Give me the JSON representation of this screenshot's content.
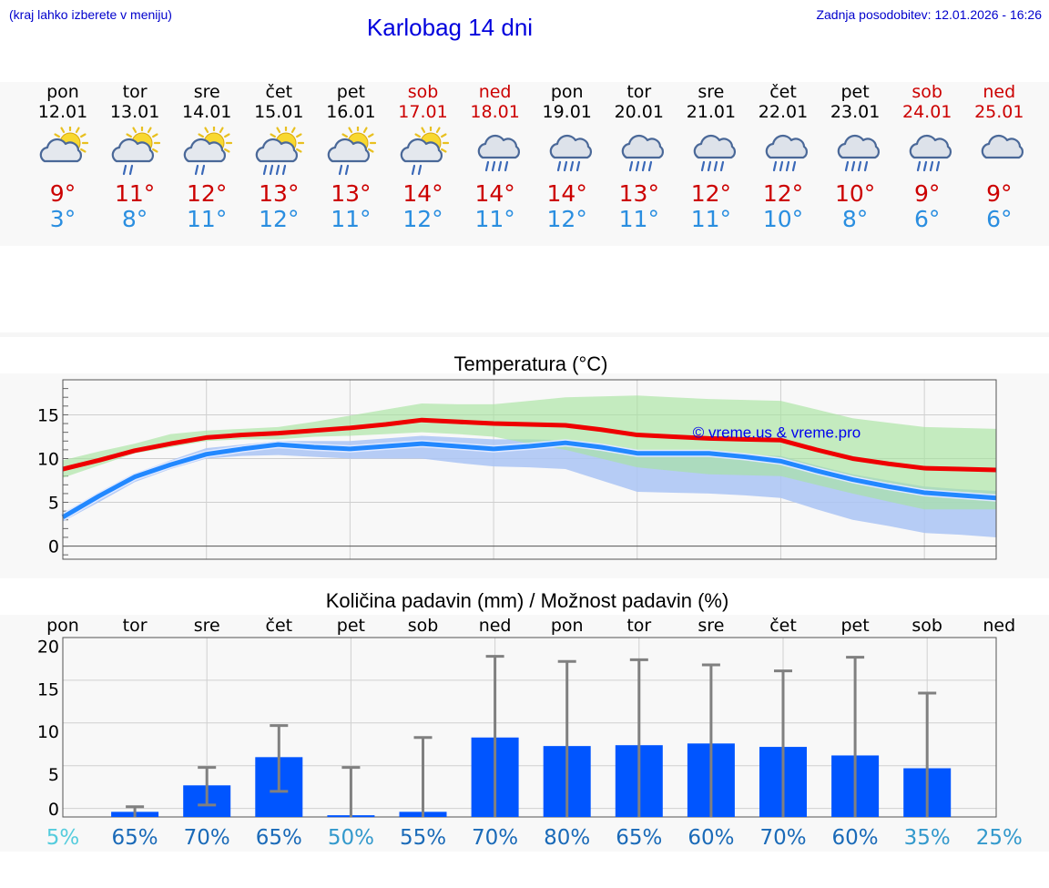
{
  "header": {
    "left_note": "(kraj lahko izberete v meniju)",
    "title": "Karlobag 14 dni",
    "updated": "Zadnja posodobitev: 12.01.2026 - 16:26"
  },
  "days": [
    {
      "name": "pon",
      "date": "12.01",
      "tmax": "9°",
      "tmin": "3°",
      "icon": "sun-cloud-icon",
      "weekend": false
    },
    {
      "name": "tor",
      "date": "13.01",
      "tmax": "11°",
      "tmin": "8°",
      "icon": "sun-cloud-rain-icon",
      "weekend": false
    },
    {
      "name": "sre",
      "date": "14.01",
      "tmax": "12°",
      "tmin": "11°",
      "icon": "sun-cloud-rain-icon",
      "weekend": false
    },
    {
      "name": "čet",
      "date": "15.01",
      "tmax": "13°",
      "tmin": "12°",
      "icon": "sun-cloud-heavy-rain-icon",
      "weekend": false
    },
    {
      "name": "pet",
      "date": "16.01",
      "tmax": "13°",
      "tmin": "11°",
      "icon": "sun-cloud-rain-icon",
      "weekend": false
    },
    {
      "name": "sob",
      "date": "17.01",
      "tmax": "14°",
      "tmin": "12°",
      "icon": "sun-cloud-rain-icon",
      "weekend": true
    },
    {
      "name": "ned",
      "date": "18.01",
      "tmax": "14°",
      "tmin": "11°",
      "icon": "cloud-heavy-rain-icon",
      "weekend": true
    },
    {
      "name": "pon",
      "date": "19.01",
      "tmax": "14°",
      "tmin": "12°",
      "icon": "cloud-heavy-rain-icon",
      "weekend": false
    },
    {
      "name": "tor",
      "date": "20.01",
      "tmax": "13°",
      "tmin": "11°",
      "icon": "cloud-heavy-rain-icon",
      "weekend": false
    },
    {
      "name": "sre",
      "date": "21.01",
      "tmax": "12°",
      "tmin": "11°",
      "icon": "cloud-heavy-rain-icon",
      "weekend": false
    },
    {
      "name": "čet",
      "date": "22.01",
      "tmax": "12°",
      "tmin": "10°",
      "icon": "cloud-heavy-rain-icon",
      "weekend": false
    },
    {
      "name": "pet",
      "date": "23.01",
      "tmax": "10°",
      "tmin": "8°",
      "icon": "cloud-heavy-rain-icon",
      "weekend": false
    },
    {
      "name": "sob",
      "date": "24.01",
      "tmax": "9°",
      "tmin": "6°",
      "icon": "cloud-heavy-rain-icon",
      "weekend": true
    },
    {
      "name": "ned",
      "date": "25.01",
      "tmax": "9°",
      "tmin": "6°",
      "icon": "cloud-icon",
      "weekend": true
    }
  ],
  "colors": {
    "max_temp": "#cc0000",
    "min_temp": "#2a8ee0",
    "max_line": "#ee0000",
    "min_line": "#2288ff",
    "max_band": "#a8e4a0",
    "min_band": "#aac4f4",
    "bar": "#0055ff",
    "error": "#808080"
  },
  "chart_data": [
    {
      "type": "line",
      "title": "Temperatura (°C)",
      "watermark": "© vreme.us & vreme.pro",
      "ylim": [
        -1.5,
        19
      ],
      "yticks": [
        0,
        5,
        10,
        15
      ],
      "x": [
        0,
        0.5,
        1,
        1.5,
        2,
        2.5,
        3,
        3.5,
        4,
        4.5,
        5,
        5.5,
        6,
        6.5,
        7,
        7.5,
        8,
        8.5,
        9,
        9.5,
        10,
        10.5,
        11,
        11.5,
        12,
        12.5,
        13
      ],
      "series": [
        {
          "name": "max",
          "values": [
            8.8,
            9.8,
            10.9,
            11.7,
            12.4,
            12.7,
            12.9,
            13.2,
            13.5,
            13.9,
            14.4,
            14.2,
            14.0,
            13.9,
            13.8,
            13.3,
            12.7,
            12.5,
            12.3,
            12.2,
            12.1,
            11.0,
            10.0,
            9.4,
            8.9,
            8.8,
            8.7
          ]
        },
        {
          "name": "min",
          "values": [
            3.3,
            5.7,
            7.9,
            9.3,
            10.5,
            11.1,
            11.6,
            11.3,
            11.1,
            11.4,
            11.7,
            11.4,
            11.1,
            11.4,
            11.8,
            11.3,
            10.6,
            10.6,
            10.6,
            10.2,
            9.7,
            8.6,
            7.6,
            6.8,
            6.1,
            5.8,
            5.5
          ]
        },
        {
          "name": "max_band_high",
          "values": [
            9.8,
            10.8,
            11.7,
            12.8,
            13.2,
            13.4,
            13.6,
            14.2,
            14.9,
            15.6,
            16.3,
            16.2,
            16.2,
            16.6,
            17.0,
            17.1,
            17.2,
            17.0,
            16.8,
            16.7,
            16.6,
            15.6,
            14.6,
            14.1,
            13.6,
            13.5,
            13.4
          ]
        },
        {
          "name": "max_band_low",
          "values": [
            7.8,
            9.2,
            10.6,
            11.3,
            12.0,
            12.2,
            12.2,
            12.5,
            12.6,
            12.8,
            13.0,
            12.8,
            12.5,
            11.7,
            11.0,
            10.0,
            9.0,
            8.6,
            8.2,
            8.1,
            8.0,
            7.0,
            6.0,
            5.1,
            4.2,
            4.2,
            4.2
          ]
        },
        {
          "name": "min_band_high",
          "values": [
            3.8,
            6.0,
            8.3,
            9.8,
            11.2,
            11.6,
            12.0,
            12.0,
            12.0,
            12.3,
            12.6,
            12.4,
            12.2,
            12.2,
            12.1,
            11.3,
            10.5,
            10.5,
            10.5,
            10.4,
            10.3,
            9.2,
            8.2,
            7.5,
            6.8,
            6.5,
            6.3
          ]
        },
        {
          "name": "min_band_low",
          "values": [
            2.8,
            5.0,
            7.3,
            8.8,
            10.0,
            10.3,
            10.4,
            10.2,
            10.0,
            10.0,
            10.0,
            9.5,
            9.1,
            9.0,
            8.8,
            7.5,
            6.2,
            6.1,
            6.0,
            5.8,
            5.5,
            4.2,
            3.0,
            2.3,
            1.5,
            1.3,
            1.0
          ]
        }
      ]
    },
    {
      "type": "bar",
      "title": "Količina padavin (mm) / Možnost padavin (%)",
      "categories": [
        "pon",
        "tor",
        "sre",
        "čet",
        "pet",
        "sob",
        "ned",
        "pon",
        "tor",
        "sre",
        "čet",
        "pet",
        "sob",
        "ned"
      ],
      "ylim": [
        -1,
        20
      ],
      "yticks": [
        0,
        5,
        10,
        15,
        20
      ],
      "values": [
        0,
        0.6,
        3.7,
        7.0,
        0.2,
        0.6,
        9.3,
        8.3,
        8.4,
        8.6,
        8.2,
        7.2,
        5.7,
        0
      ],
      "err_low": [
        0,
        0,
        1.4,
        3.0,
        0,
        0,
        0,
        0,
        0,
        0,
        0,
        0,
        0,
        0
      ],
      "err_high": [
        0,
        1.2,
        5.8,
        10.7,
        5.8,
        9.3,
        18.8,
        18.2,
        18.4,
        17.8,
        17.1,
        18.7,
        14.5,
        0
      ],
      "chance": [
        "5%",
        "65%",
        "70%",
        "65%",
        "50%",
        "55%",
        "70%",
        "80%",
        "65%",
        "60%",
        "70%",
        "60%",
        "35%",
        "25%"
      ],
      "chance_colors": [
        "#55ccdd",
        "#1a6ab8",
        "#1a6ab8",
        "#1a6ab8",
        "#3399cc",
        "#1a6ab8",
        "#1a6ab8",
        "#1a6ab8",
        "#1a6ab8",
        "#1a6ab8",
        "#1a6ab8",
        "#1a6ab8",
        "#3399cc",
        "#3399cc"
      ]
    }
  ]
}
